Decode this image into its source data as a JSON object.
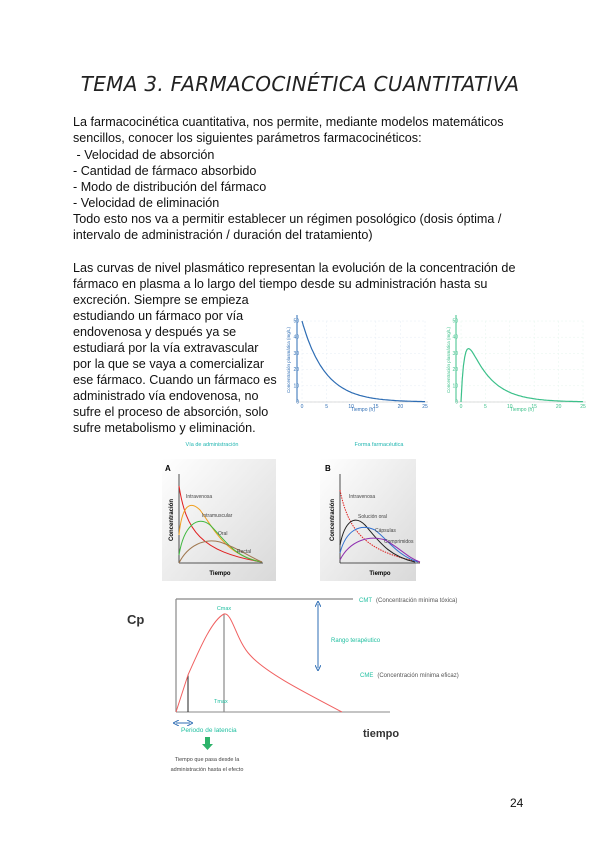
{
  "title": "TEMA 3. FARMACOCINÉTICA CUANTITATIVA",
  "paragraph1": [
    "La farmacocinética cuantitativa, nos permite, mediante modelos matemáticos",
    "sencillos, conocer los siguientes parámetros farmacocinéticos:",
    " - Velocidad de absorción",
    "- Cantidad de fármaco absorbido",
    "- Modo de distribución del fármaco",
    "- Velocidad de eliminación",
    "Todo esto nos va a permitir establecer un régimen posológico (dosis óptima /",
    "intervalo de administración / duración del tratamiento)"
  ],
  "paragraph2": [
    "Las curvas de nivel plasmático representan la evolución de la concentración de",
    "fármaco en plasma a lo largo del tiempo desde su administración hasta su",
    "excreción. Siempre se empieza",
    "estudiando un fármaco por vía",
    "endovenosa y después ya se",
    "estudiará por la vía extravascular",
    "por la que se vaya a comercializar",
    "ese fármaco. Cuando un fármaco es",
    "administrado vía endovenosa, no",
    "sufre el proceso de absorción, solo",
    "sufre metabolismo y eliminación."
  ],
  "chart_iv": {
    "ylabel": "Concentración plasmática (mg/L)",
    "xlabel": "Tiempo (h)",
    "yticks": [
      "0",
      "10",
      "20",
      "30",
      "40",
      "50"
    ],
    "xticks": [
      "0",
      "5",
      "10",
      "15",
      "20",
      "25"
    ],
    "color": "#2e6db4"
  },
  "chart_oral": {
    "ylabel": "Concentración plasmática (mg/L)",
    "xlabel": "Tiempo (h)",
    "yticks": [
      "0",
      "10",
      "20",
      "30",
      "40",
      "50"
    ],
    "xticks": [
      "0",
      "5",
      "10",
      "15",
      "20",
      "25"
    ],
    "color": "#3cc08a"
  },
  "figA": {
    "caption": "Vía de administración",
    "letter": "A",
    "ylabel": "Concentración",
    "xlabel": "Tiempo",
    "labels": [
      "Intravenosa",
      "Intramuscular",
      "Oral",
      "Rectal"
    ]
  },
  "figB": {
    "caption": "Forma farmacéutica",
    "letter": "B",
    "ylabel": "Concentración",
    "xlabel": "Tiempo",
    "labels": [
      "Intravenosa",
      "Solución oral",
      "Cápsulas",
      "Comprimidos"
    ]
  },
  "cp_diagram": {
    "ylabel": "Cp",
    "xlabel": "tiempo",
    "cmt": "CMT",
    "cmt_desc": "(Concentración mínima tóxica)",
    "cme": "CME",
    "cme_desc": "(Concentración mínima eficaz)",
    "rango": "Rango terapéutico",
    "cmax": "Cmax",
    "tmax": "Tmax",
    "latencia": "Periodo de latencia",
    "latencia_desc": [
      "Tiempo que pasa desde la",
      "administración hasta el efecto"
    ]
  },
  "page_number": "24"
}
